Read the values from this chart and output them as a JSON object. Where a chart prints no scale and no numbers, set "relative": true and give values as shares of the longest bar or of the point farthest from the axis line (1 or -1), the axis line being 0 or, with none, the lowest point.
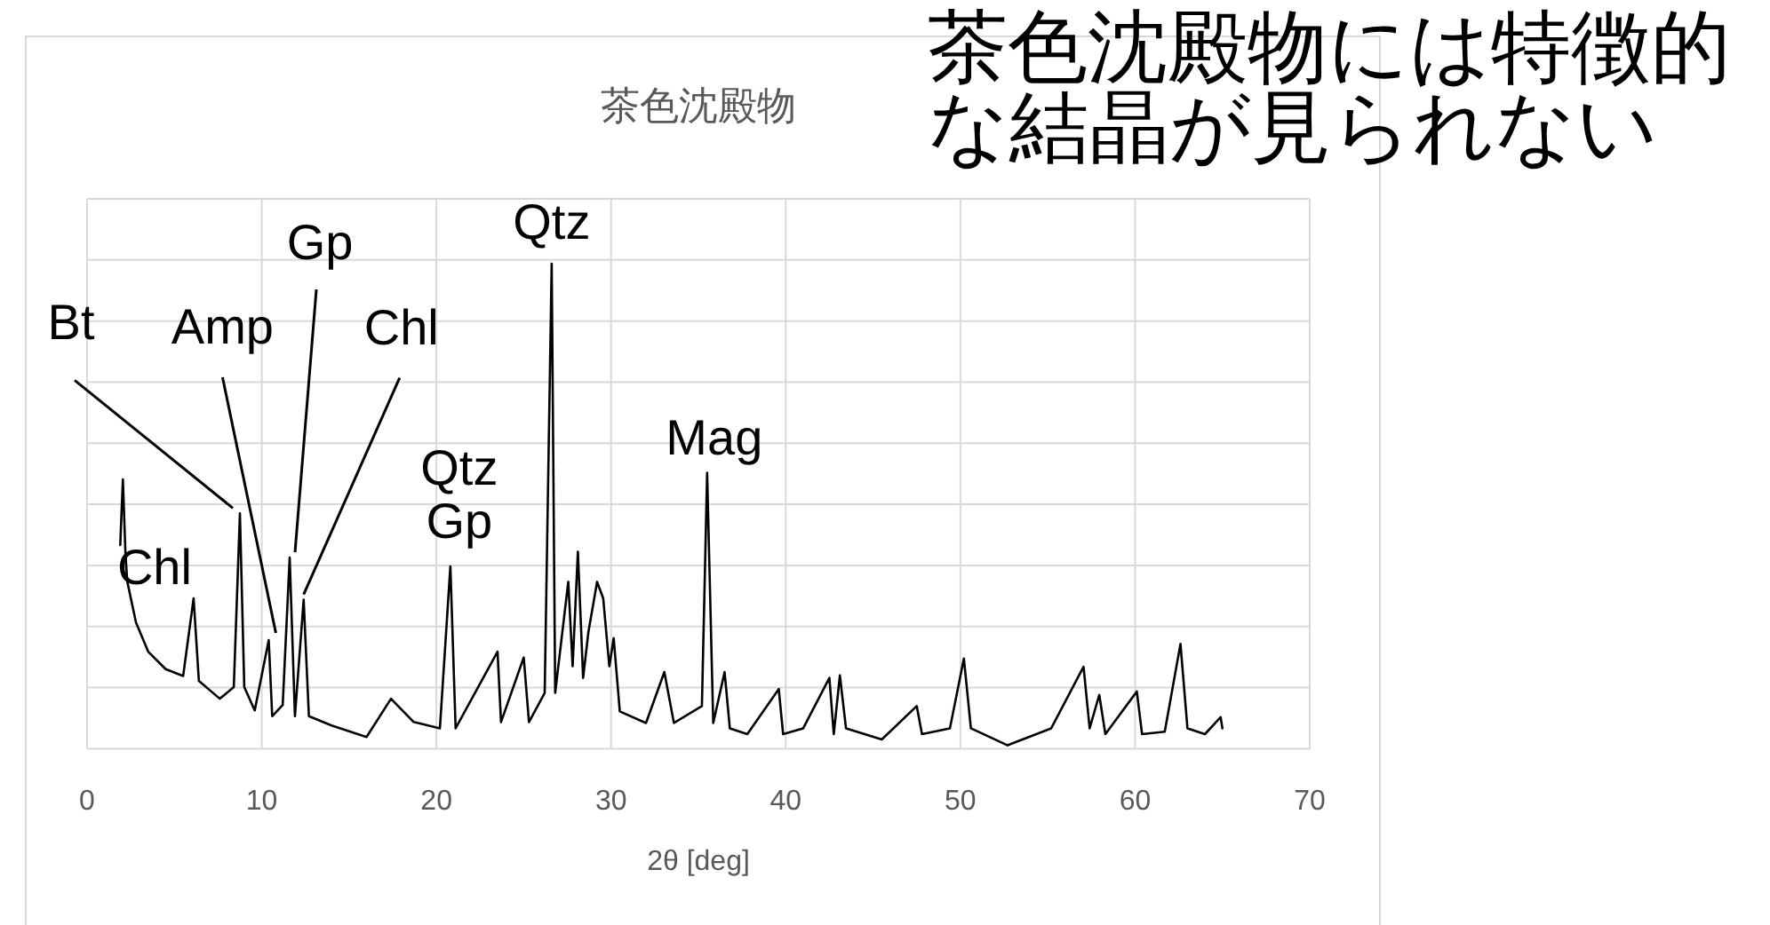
{
  "chart_data": {
    "type": "line",
    "title": "茶色沈殿物",
    "xlabel": "2θ [deg]",
    "relative": true,
    "grid": true,
    "color": "#000000",
    "xlim": [
      0,
      70
    ],
    "xticks": [
      0,
      10,
      20,
      30,
      40,
      50,
      60,
      70
    ],
    "x": [
      1.9,
      2.05,
      2.2,
      2.3,
      2.8,
      3.5,
      4.5,
      5.5,
      6.1,
      6.4,
      7.6,
      8.4,
      8.75,
      9.0,
      9.6,
      10.4,
      10.6,
      11.2,
      11.6,
      11.9,
      12.4,
      12.7,
      14.0,
      16.0,
      17.4,
      18.7,
      20.2,
      20.8,
      21.1,
      23.5,
      23.7,
      25.0,
      25.3,
      26.2,
      26.6,
      26.8,
      27.55,
      27.8,
      28.1,
      28.4,
      28.7,
      29.2,
      29.55,
      29.9,
      30.15,
      30.5,
      32,
      33.05,
      33.6,
      35.2,
      35.5,
      35.85,
      36.5,
      36.8,
      37.8,
      39.6,
      39.85,
      41,
      42.5,
      42.75,
      43.1,
      43.45,
      45.5,
      47.5,
      47.8,
      49.4,
      50.2,
      50.6,
      52.7,
      55.2,
      57.05,
      57.4,
      57.95,
      58.3,
      60.1,
      60.4,
      61.7,
      62.6,
      63.0,
      64.0,
      64.9,
      65.0
    ],
    "values": [
      0.42,
      0.555,
      0.4,
      0.345,
      0.26,
      0.2,
      0.164,
      0.15,
      0.31,
      0.14,
      0.103,
      0.127,
      0.485,
      0.127,
      0.079,
      0.224,
      0.067,
      0.09,
      0.394,
      0.067,
      0.307,
      0.067,
      0.048,
      0.024,
      0.103,
      0.055,
      0.042,
      0.376,
      0.042,
      0.2,
      0.055,
      0.188,
      0.055,
      0.115,
      1.0,
      0.115,
      0.344,
      0.17,
      0.406,
      0.146,
      0.24,
      0.344,
      0.31,
      0.17,
      0.228,
      0.077,
      0.053,
      0.158,
      0.053,
      0.088,
      0.569,
      0.053,
      0.158,
      0.042,
      0.03,
      0.123,
      0.03,
      0.042,
      0.146,
      0.03,
      0.151,
      0.042,
      0.019,
      0.088,
      0.03,
      0.042,
      0.186,
      0.042,
      0.007,
      0.042,
      0.169,
      0.042,
      0.111,
      0.03,
      0.118,
      0.03,
      0.035,
      0.216,
      0.042,
      0.03,
      0.065,
      0.042
    ],
    "annotations": [
      "茶色沈殿物には特徴的な結晶が見られない",
      {
        "text": "Bt",
        "x": 8.75,
        "y": 0.485
      },
      {
        "text": "Amp",
        "x": 10.4,
        "y": 0.224
      },
      {
        "text": "Gp",
        "x": 11.6,
        "y": 0.394
      },
      {
        "text": "Chl",
        "x": 12.4,
        "y": 0.307
      },
      {
        "text": "Qtz",
        "x": 20.8,
        "y": 0.376
      },
      {
        "text": "Gp",
        "x": 20.8,
        "y": 0.376
      },
      {
        "text": "Qtz",
        "x": 26.6,
        "y": 1.0
      },
      {
        "text": "Mag",
        "x": 35.5,
        "y": 0.569
      },
      {
        "text": "Chl",
        "x": 6.1,
        "y": 0.31
      }
    ]
  }
}
